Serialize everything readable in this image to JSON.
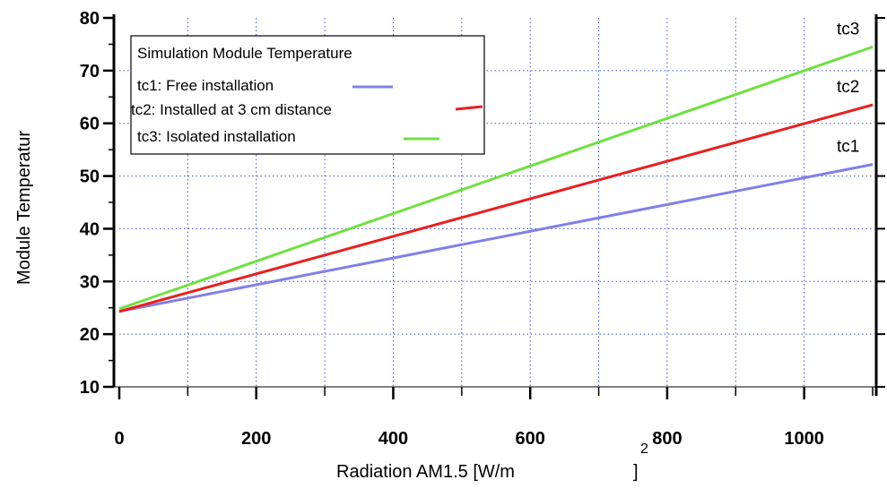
{
  "chart_data": {
    "type": "line",
    "xlabel": "Radiation AM1.5 [W/m",
    "xlabel_superscript": "2",
    "xlabel_close": "]",
    "ylabel": "Module Temperatur",
    "xlim": [
      0,
      1100
    ],
    "ylim": [
      10,
      80
    ],
    "x_ticks": [
      0,
      200,
      400,
      600,
      800,
      1000
    ],
    "y_ticks": [
      10,
      20,
      30,
      40,
      50,
      60,
      70,
      80
    ],
    "x_minor_ticks": [
      100,
      300,
      500,
      700,
      900,
      1100
    ],
    "grid": true,
    "legend": {
      "title": "Simulation Module Temperature",
      "position": "top-left",
      "entries": [
        "tc1: Free installation",
        "tc2: Installed at 3 cm distance",
        "tc3: Isolated installation"
      ]
    },
    "series": [
      {
        "name": "tc1",
        "color": "#8080e8",
        "x": [
          0,
          1100
        ],
        "y": [
          24.3,
          52.2
        ]
      },
      {
        "name": "tc2",
        "color": "#e82020",
        "x": [
          0,
          1100
        ],
        "y": [
          24.3,
          63.5
        ]
      },
      {
        "name": "tc3",
        "color": "#70e040",
        "x": [
          0,
          1100
        ],
        "y": [
          24.8,
          74.5
        ]
      }
    ]
  }
}
